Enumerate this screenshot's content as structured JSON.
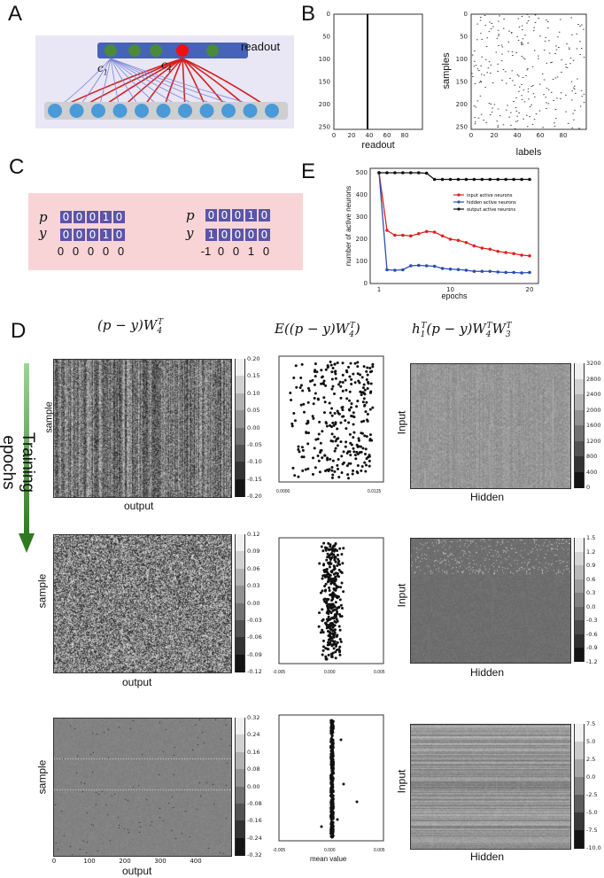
{
  "panels": {
    "A": "A",
    "B": "B",
    "C": "C",
    "D": "D",
    "E": "E"
  },
  "panelA": {
    "readout_label": "readout",
    "c1": "c",
    "c1_sub": "1",
    "c4": "c",
    "c4_sub": "4"
  },
  "panelB": {
    "left": {
      "xlabel": "readout",
      "yticks": [
        "0",
        "50",
        "100",
        "150",
        "200",
        "250"
      ],
      "xticks": [
        "0",
        "20",
        "40",
        "60",
        "80"
      ]
    },
    "right": {
      "xlabel": "labels",
      "ylabel": "samples",
      "yticks": [
        "0",
        "50",
        "100",
        "150",
        "200",
        "250"
      ],
      "xticks": [
        "0",
        "20",
        "40",
        "60",
        "80"
      ]
    }
  },
  "panelC": {
    "left": {
      "p_label": "p",
      "y_label": "y",
      "p": [
        "0",
        "0",
        "0",
        "1",
        "0"
      ],
      "y": [
        "0",
        "0",
        "0",
        "1",
        "0"
      ],
      "diff": [
        "0",
        "0",
        "0",
        "0",
        "0"
      ]
    },
    "right": {
      "p_label": "p",
      "y_label": "y",
      "p": [
        "0",
        "0",
        "0",
        "1",
        "0"
      ],
      "y": [
        "1",
        "0",
        "0",
        "0",
        "0"
      ],
      "diff": [
        "-1",
        "0",
        "0",
        "1",
        "0"
      ]
    }
  },
  "panelD": {
    "col1_title": "(p − y)W",
    "col1_sub": "4",
    "col1_sup": "T",
    "col2_title": "E((p − y)W",
    "col2_sub": "4",
    "col2_sup": "T",
    "col2_close": ")",
    "col3_title": "h",
    "col3_h_sub": "1",
    "col3_h_sup": "T",
    "col3_mid": "(p − y)W",
    "col3_w4_sub": "4",
    "col3_w4_sup": "T",
    "col3_w3": "W",
    "col3_w3_sub": "3",
    "col3_w3_sup": "T",
    "training_label": "Training epochs",
    "sample_label": "sample",
    "output_label": "output",
    "input_label": "Input",
    "hidden_label": "Hidden",
    "mean_value_label": "mean value",
    "row1_cb": [
      "0.20",
      "0.15",
      "0.10",
      "0.05",
      "0.00",
      "-0.05",
      "-0.10",
      "-0.15",
      "-0.20"
    ],
    "row2_cb": [
      "0.12",
      "0.09",
      "0.06",
      "0.03",
      "0.00",
      "-0.03",
      "-0.06",
      "-0.09",
      "-0.12"
    ],
    "row3_cb": [
      "0.32",
      "0.24",
      "0.16",
      "0.08",
      "0.00",
      "-0.08",
      "-0.16",
      "-0.24",
      "-0.32"
    ],
    "row1_cb3": [
      "3200",
      "2800",
      "2400",
      "2000",
      "1600",
      "1200",
      "800",
      "400",
      "0"
    ],
    "row2_cb3": [
      "1.5",
      "1.2",
      "0.9",
      "0.6",
      "0.3",
      "0.0",
      "-0.3",
      "-0.6",
      "-0.9",
      "-1.2"
    ],
    "row3_cb3": [
      "7.5",
      "5.0",
      "2.5",
      "0.0",
      "-2.5",
      "-5.0",
      "-7.5",
      "-10.0"
    ],
    "row1_scatter_x": [
      "0.0000",
      "0.0125"
    ],
    "row2_scatter_x": [
      "-0.005",
      "0.000",
      "0.005"
    ],
    "row3_scatter_x": [
      "-0.005",
      "0.000",
      "0.005"
    ],
    "row3_xticks": [
      "0",
      "100",
      "200",
      "300",
      "400"
    ]
  },
  "chart_data": {
    "type": "line",
    "title": "",
    "xlabel": "epochs",
    "ylabel": "number of active neurons",
    "x": [
      1,
      2,
      3,
      4,
      5,
      6,
      7,
      8,
      9,
      10,
      11,
      12,
      13,
      14,
      15,
      16,
      17,
      18,
      19,
      20
    ],
    "xticks": [
      "1",
      "10",
      "20"
    ],
    "yticks": [
      "0",
      "100",
      "200",
      "300",
      "400",
      "500"
    ],
    "ylim": [
      0,
      520
    ],
    "series": [
      {
        "name": "input active neurons",
        "color": "#e02020",
        "values": [
          500,
          240,
          218,
          218,
          215,
          225,
          235,
          232,
          215,
          200,
          195,
          185,
          170,
          160,
          155,
          145,
          140,
          135,
          128,
          125
        ]
      },
      {
        "name": "hidden active neurons",
        "color": "#2a4fb0",
        "values": [
          500,
          62,
          60,
          62,
          80,
          82,
          80,
          78,
          68,
          65,
          63,
          60,
          55,
          55,
          55,
          52,
          50,
          50,
          48,
          50
        ]
      },
      {
        "name": "output active neurons",
        "color": "#111111",
        "values": [
          500,
          500,
          500,
          500,
          500,
          500,
          498,
          470,
          470,
          470,
          470,
          470,
          470,
          470,
          470,
          470,
          470,
          470,
          470,
          470
        ]
      }
    ]
  }
}
